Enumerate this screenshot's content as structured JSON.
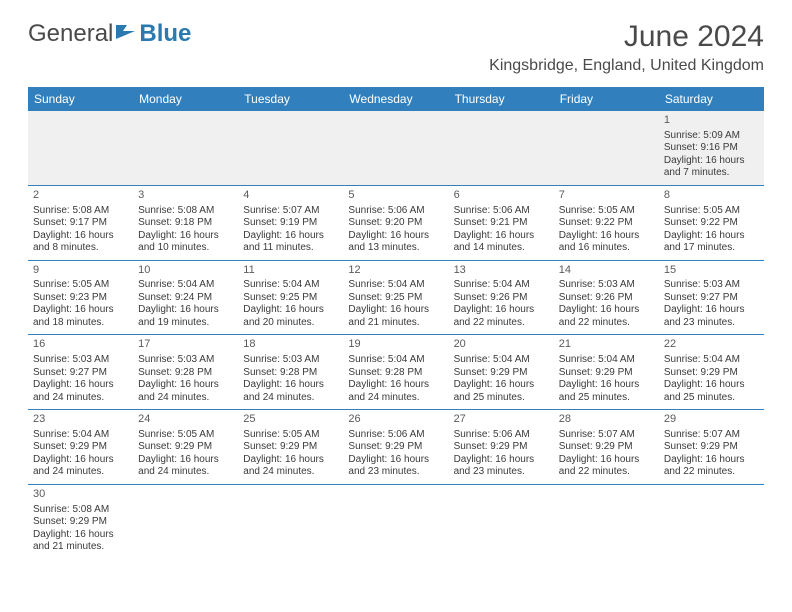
{
  "logo": {
    "part1": "General",
    "part2": "Blue"
  },
  "title": "June 2024",
  "location": "Kingsbridge, England, United Kingdom",
  "colors": {
    "header_bg": "#3180bd",
    "header_text": "#ffffff",
    "border": "#3180bd",
    "text": "#3a3a3a",
    "title_text": "#4a4a4a",
    "logo_gray": "#4a4a4a",
    "logo_blue": "#2a7ab0",
    "first_week_bg": "#f0f0f0"
  },
  "day_headers": [
    "Sunday",
    "Monday",
    "Tuesday",
    "Wednesday",
    "Thursday",
    "Friday",
    "Saturday"
  ],
  "weeks": [
    [
      null,
      null,
      null,
      null,
      null,
      null,
      {
        "n": "1",
        "sunrise": "5:09 AM",
        "sunset": "9:16 PM",
        "daylight": "16 hours and 7 minutes."
      }
    ],
    [
      {
        "n": "2",
        "sunrise": "5:08 AM",
        "sunset": "9:17 PM",
        "daylight": "16 hours and 8 minutes."
      },
      {
        "n": "3",
        "sunrise": "5:08 AM",
        "sunset": "9:18 PM",
        "daylight": "16 hours and 10 minutes."
      },
      {
        "n": "4",
        "sunrise": "5:07 AM",
        "sunset": "9:19 PM",
        "daylight": "16 hours and 11 minutes."
      },
      {
        "n": "5",
        "sunrise": "5:06 AM",
        "sunset": "9:20 PM",
        "daylight": "16 hours and 13 minutes."
      },
      {
        "n": "6",
        "sunrise": "5:06 AM",
        "sunset": "9:21 PM",
        "daylight": "16 hours and 14 minutes."
      },
      {
        "n": "7",
        "sunrise": "5:05 AM",
        "sunset": "9:22 PM",
        "daylight": "16 hours and 16 minutes."
      },
      {
        "n": "8",
        "sunrise": "5:05 AM",
        "sunset": "9:22 PM",
        "daylight": "16 hours and 17 minutes."
      }
    ],
    [
      {
        "n": "9",
        "sunrise": "5:05 AM",
        "sunset": "9:23 PM",
        "daylight": "16 hours and 18 minutes."
      },
      {
        "n": "10",
        "sunrise": "5:04 AM",
        "sunset": "9:24 PM",
        "daylight": "16 hours and 19 minutes."
      },
      {
        "n": "11",
        "sunrise": "5:04 AM",
        "sunset": "9:25 PM",
        "daylight": "16 hours and 20 minutes."
      },
      {
        "n": "12",
        "sunrise": "5:04 AM",
        "sunset": "9:25 PM",
        "daylight": "16 hours and 21 minutes."
      },
      {
        "n": "13",
        "sunrise": "5:04 AM",
        "sunset": "9:26 PM",
        "daylight": "16 hours and 22 minutes."
      },
      {
        "n": "14",
        "sunrise": "5:03 AM",
        "sunset": "9:26 PM",
        "daylight": "16 hours and 22 minutes."
      },
      {
        "n": "15",
        "sunrise": "5:03 AM",
        "sunset": "9:27 PM",
        "daylight": "16 hours and 23 minutes."
      }
    ],
    [
      {
        "n": "16",
        "sunrise": "5:03 AM",
        "sunset": "9:27 PM",
        "daylight": "16 hours and 24 minutes."
      },
      {
        "n": "17",
        "sunrise": "5:03 AM",
        "sunset": "9:28 PM",
        "daylight": "16 hours and 24 minutes."
      },
      {
        "n": "18",
        "sunrise": "5:03 AM",
        "sunset": "9:28 PM",
        "daylight": "16 hours and 24 minutes."
      },
      {
        "n": "19",
        "sunrise": "5:04 AM",
        "sunset": "9:28 PM",
        "daylight": "16 hours and 24 minutes."
      },
      {
        "n": "20",
        "sunrise": "5:04 AM",
        "sunset": "9:29 PM",
        "daylight": "16 hours and 25 minutes."
      },
      {
        "n": "21",
        "sunrise": "5:04 AM",
        "sunset": "9:29 PM",
        "daylight": "16 hours and 25 minutes."
      },
      {
        "n": "22",
        "sunrise": "5:04 AM",
        "sunset": "9:29 PM",
        "daylight": "16 hours and 25 minutes."
      }
    ],
    [
      {
        "n": "23",
        "sunrise": "5:04 AM",
        "sunset": "9:29 PM",
        "daylight": "16 hours and 24 minutes."
      },
      {
        "n": "24",
        "sunrise": "5:05 AM",
        "sunset": "9:29 PM",
        "daylight": "16 hours and 24 minutes."
      },
      {
        "n": "25",
        "sunrise": "5:05 AM",
        "sunset": "9:29 PM",
        "daylight": "16 hours and 24 minutes."
      },
      {
        "n": "26",
        "sunrise": "5:06 AM",
        "sunset": "9:29 PM",
        "daylight": "16 hours and 23 minutes."
      },
      {
        "n": "27",
        "sunrise": "5:06 AM",
        "sunset": "9:29 PM",
        "daylight": "16 hours and 23 minutes."
      },
      {
        "n": "28",
        "sunrise": "5:07 AM",
        "sunset": "9:29 PM",
        "daylight": "16 hours and 22 minutes."
      },
      {
        "n": "29",
        "sunrise": "5:07 AM",
        "sunset": "9:29 PM",
        "daylight": "16 hours and 22 minutes."
      }
    ],
    [
      {
        "n": "30",
        "sunrise": "5:08 AM",
        "sunset": "9:29 PM",
        "daylight": "16 hours and 21 minutes."
      },
      null,
      null,
      null,
      null,
      null,
      null
    ]
  ],
  "labels": {
    "sunrise": "Sunrise: ",
    "sunset": "Sunset: ",
    "daylight": "Daylight: "
  }
}
